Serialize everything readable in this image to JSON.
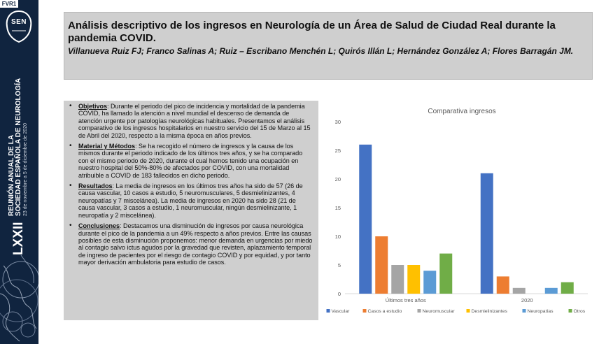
{
  "band": {
    "code": "FVR1",
    "logo_text": "SEN",
    "roman": "LXXII",
    "line1": "REUNIÓN ANUAL DE LA",
    "line2": "SOCIEDAD ESPAÑOLA DE NEUROLOGÍA",
    "dates": "23 de noviembre a 5 de diciembre de 2020"
  },
  "poster": {
    "title": "Análisis descriptivo de los ingresos en Neurología de un Área de Salud de Ciudad Real durante la pandemia COVID.",
    "authors": "Villanueva Ruiz FJ; Franco Salinas A; Ruiz – Escribano Menchén L; Quirós Illán L; Hernández González A; Flores Barragán JM."
  },
  "sections": [
    {
      "label": "Objetivos",
      "text": ": Durante el periodo del pico de incidencia y mortalidad de la pandemia COVID, ha llamado la atención a nivel mundial el descenso de demanda de atención urgente por patologías neurológicas habituales. Presentamos el análisis comparativo de los ingresos hospitalarios  en nuestro servicio del 15 de Marzo al 15 de Abril del 2020, respecto a la misma época en años previos."
    },
    {
      "label": "Material y Métodos",
      "text": ": Se ha recogido el número de ingresos y la causa de los mismos durante el periodo indicado de los últimos tres años, y se ha comparado con el mismo periodo de 2020, durante el cual hemos tenido una ocupación en nuestro hospital del 50%-80% de afectados por COVID, con una mortalidad atribuible a COVID de 183 fallecidos en dicho periodo."
    },
    {
      "label": "Resultados",
      "text": ": La media de ingresos en los últimos tres años ha sido de 57 (26 de causa vascular, 10 casos a estudio, 5 neuromusculares, 5 desmielinizantes, 4 neuropatías y 7 miscelánea). La media de ingresos en 2020 ha sido 28 (21 de causa vascular, 3 casos a estudio, 1 neuromuscular, ningún desmielinizante, 1 neuropatía y 2 miscelánea)."
    },
    {
      "label": "Conclusiones",
      "text": ": Destacamos una disminución de ingresos por causa neurológica durante el pico de la pandemia a un 49% respecto a años previos. Entre las causas posibles de esta disminución proponemos: menor demanda en urgencias por miedo al contagio salvo ictus agudos por la gravedad que revisten, aplazamiento temporal de ingreso de pacientes por el riesgo de contagio COVID y por equidad, y por tanto mayor derivación ambulatoria para estudio de casos."
    }
  ],
  "chart_data": {
    "type": "bar",
    "title": "Comparativa ingresos",
    "categories": [
      "Últimos tres años",
      "2020"
    ],
    "series": [
      {
        "name": "Vascular",
        "values": [
          26,
          21
        ],
        "color": "#4472c4"
      },
      {
        "name": "Casos a estudio",
        "values": [
          10,
          3
        ],
        "color": "#ed7d31"
      },
      {
        "name": "Neuromuscular",
        "values": [
          5,
          1
        ],
        "color": "#a5a5a5"
      },
      {
        "name": "Desmielinizantes",
        "values": [
          5,
          0
        ],
        "color": "#ffc000"
      },
      {
        "name": "Neuropatías",
        "values": [
          4,
          1
        ],
        "color": "#5b9bd5"
      },
      {
        "name": "Otros",
        "values": [
          7,
          2
        ],
        "color": "#70ad47"
      }
    ],
    "yticks": [
      "0",
      "5",
      "10",
      "15",
      "20",
      "25",
      "30"
    ],
    "ylim": [
      0,
      30
    ],
    "grid": false,
    "legend": "bottom"
  }
}
